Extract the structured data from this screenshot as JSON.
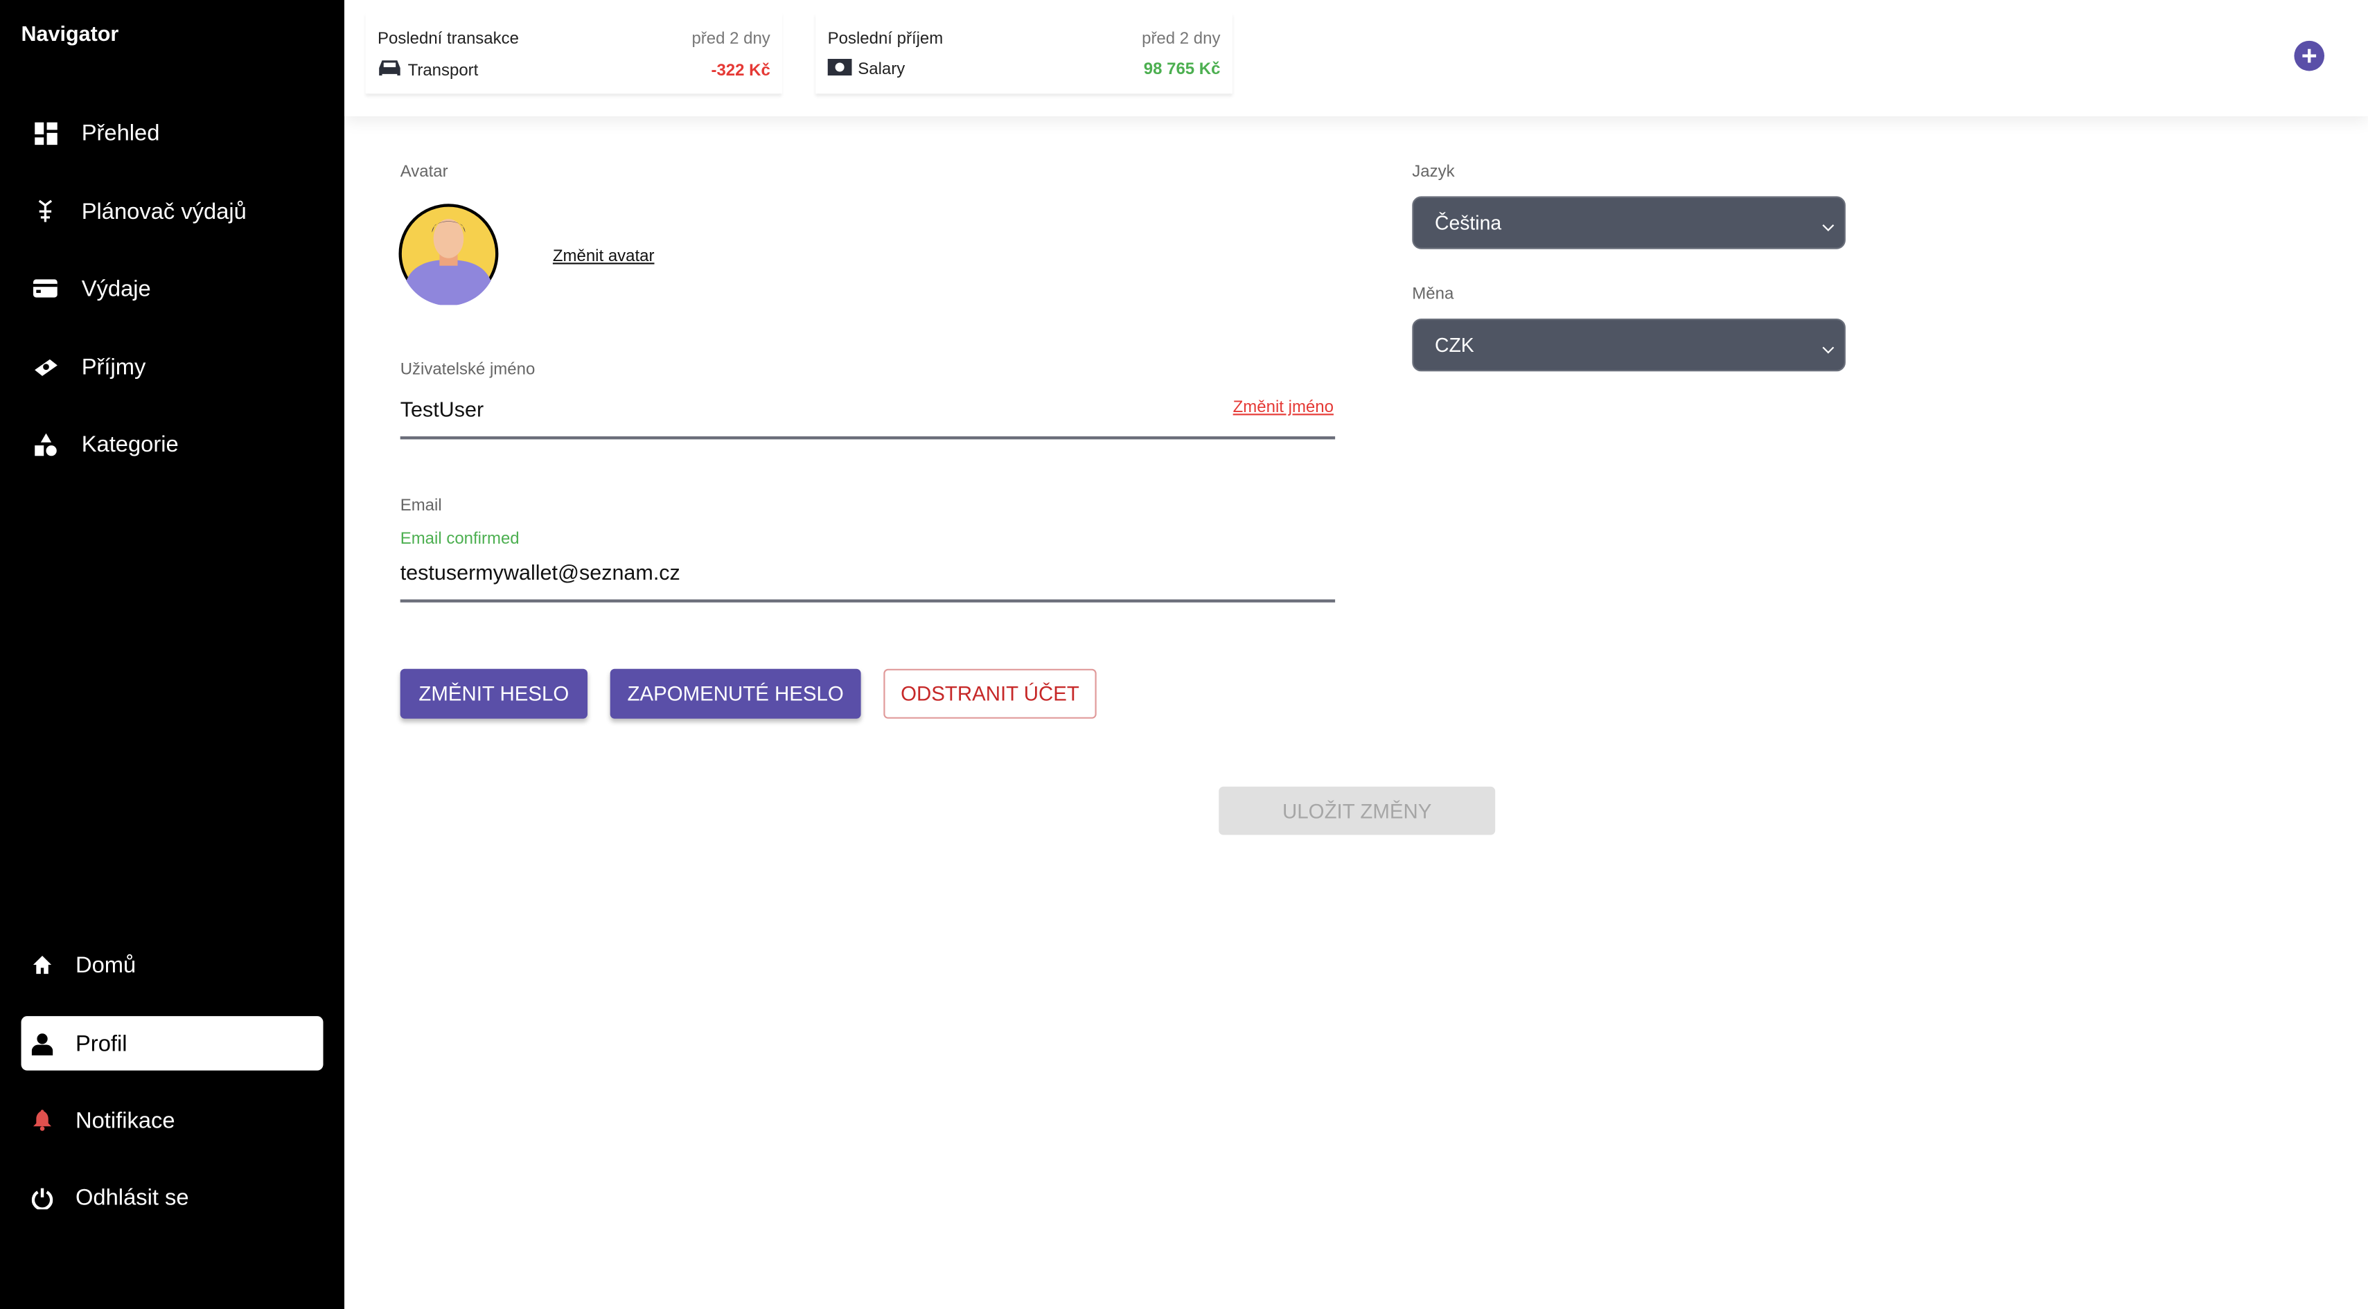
{
  "sidebar": {
    "title": "Navigator",
    "items": [
      {
        "label": "Přehled",
        "icon": "dashboard-icon"
      },
      {
        "label": "Plánovač výdajů",
        "icon": "planner-icon"
      },
      {
        "label": "Výdaje",
        "icon": "credit-card-icon"
      },
      {
        "label": "Příjmy",
        "icon": "money-icon"
      },
      {
        "label": "Kategorie",
        "icon": "shapes-icon"
      }
    ],
    "bottom_items": [
      {
        "label": "Domů",
        "icon": "home-icon"
      },
      {
        "label": "Profil",
        "icon": "user-icon",
        "active": true
      },
      {
        "label": "Notifikace",
        "icon": "bell-icon"
      },
      {
        "label": "Odhlásit se",
        "icon": "power-icon"
      }
    ]
  },
  "topbar": {
    "last_transaction": {
      "title": "Poslední transakce",
      "time": "před 2 dny",
      "category": "Transport",
      "amount": "-322 Kč",
      "icon": "car-icon"
    },
    "last_income": {
      "title": "Poslední příjem",
      "time": "před 2 dny",
      "category": "Salary",
      "amount": "98 765 Kč",
      "icon": "banknote-icon"
    },
    "add_icon": "plus-icon"
  },
  "profile": {
    "avatar_label": "Avatar",
    "change_avatar": "Změnit avatar",
    "username_label": "Uživatelské jméno",
    "username": "TestUser",
    "change_name": "Změnit jméno",
    "email_label": "Email",
    "email_status": "Email confirmed",
    "email": "testusermywallet@seznam.cz",
    "buttons": {
      "change_password": "ZMĚNIT HESLO",
      "forgot_password": "ZAPOMENUTÉ HESLO",
      "delete_account": "ODSTRANIT ÚČET",
      "save": "ULOŽIT ZMĚNY"
    },
    "language_label": "Jazyk",
    "language": "Čeština",
    "currency_label": "Měna",
    "currency": "CZK"
  },
  "colors": {
    "accent": "#5a4fa8",
    "negative": "#e53935",
    "positive": "#4caf50",
    "danger": "#c62828",
    "select_bg": "#4f5563"
  }
}
